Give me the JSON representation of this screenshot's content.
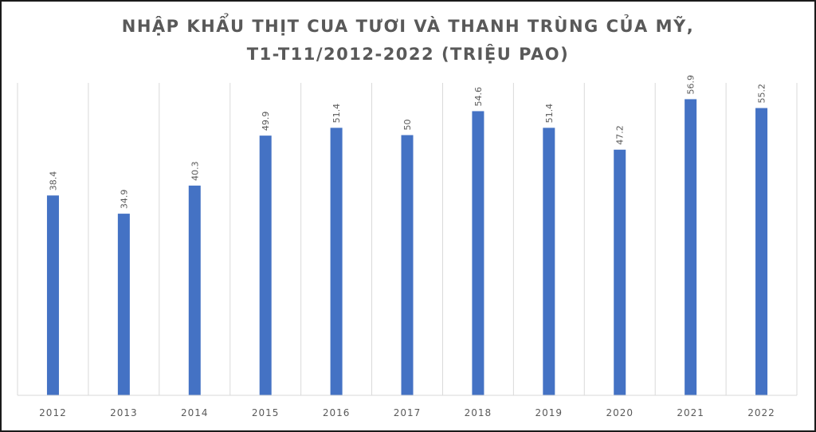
{
  "chart_data": {
    "type": "bar",
    "title_line1": "NHẬP KHẨU THỊT CUA TƯƠI VÀ THANH TRÙNG CỦA MỸ,",
    "title_line2": "T1-T11/2012-2022 (TRIỆU PAO)",
    "categories": [
      "2012",
      "2013",
      "2014",
      "2015",
      "2016",
      "2017",
      "2018",
      "2019",
      "2020",
      "2021",
      "2022"
    ],
    "values": [
      38.4,
      34.9,
      40.3,
      49.9,
      51.4,
      50,
      54.6,
      51.4,
      47.2,
      56.9,
      55.2
    ],
    "value_labels": [
      "38.4",
      "34.9",
      "40.3",
      "49.9",
      "51.4",
      "50",
      "54.6",
      "51.4",
      "47.2",
      "56.9",
      "55.2"
    ],
    "ylim": [
      0,
      60
    ],
    "bar_color": "#4472c4",
    "grid": "vertical category separators",
    "legend": "none",
    "data_label_orientation": "rotated vertical"
  }
}
